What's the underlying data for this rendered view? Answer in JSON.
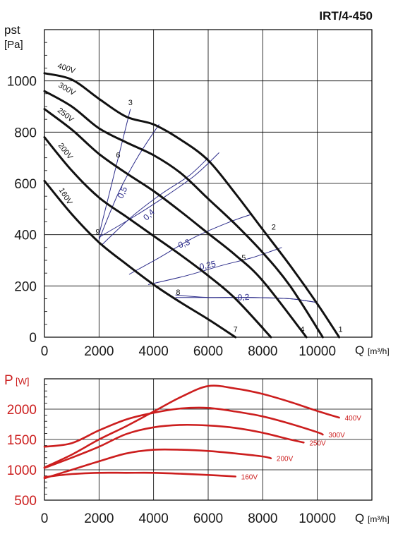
{
  "model": "IRT/4-450",
  "pressure_chart": {
    "ylabel_symbol": "pst",
    "ylabel_unit": "[Pa]",
    "x_label_prefix": "Q",
    "x_label_unit": "[m³/h]",
    "x_ticks": [
      0,
      2000,
      4000,
      6000,
      8000,
      10000
    ],
    "y_ticks": [
      0,
      200,
      400,
      600,
      800,
      1000
    ],
    "xlim": [
      0,
      12000
    ],
    "ylim": [
      0,
      1200
    ],
    "series": [
      {
        "name": "400V",
        "points": [
          [
            0,
            1030
          ],
          [
            1000,
            1005
          ],
          [
            2000,
            930
          ],
          [
            3000,
            860
          ],
          [
            4000,
            830
          ],
          [
            5000,
            770
          ],
          [
            6000,
            690
          ],
          [
            7000,
            560
          ],
          [
            8000,
            420
          ],
          [
            9000,
            280
          ],
          [
            10000,
            130
          ],
          [
            10800,
            0
          ]
        ]
      },
      {
        "name": "300V",
        "points": [
          [
            0,
            960
          ],
          [
            1000,
            900
          ],
          [
            2000,
            815
          ],
          [
            3000,
            760
          ],
          [
            4000,
            710
          ],
          [
            5000,
            640
          ],
          [
            6000,
            540
          ],
          [
            7000,
            440
          ],
          [
            8000,
            330
          ],
          [
            9000,
            200
          ],
          [
            10200,
            0
          ]
        ]
      },
      {
        "name": "250V",
        "points": [
          [
            0,
            890
          ],
          [
            1000,
            810
          ],
          [
            2000,
            715
          ],
          [
            3000,
            640
          ],
          [
            4000,
            570
          ],
          [
            5000,
            490
          ],
          [
            6000,
            405
          ],
          [
            7000,
            320
          ],
          [
            8000,
            220
          ],
          [
            9600,
            0
          ]
        ]
      },
      {
        "name": "200V",
        "points": [
          [
            0,
            780
          ],
          [
            1000,
            650
          ],
          [
            2000,
            545
          ],
          [
            3000,
            470
          ],
          [
            4000,
            395
          ],
          [
            5000,
            320
          ],
          [
            6000,
            240
          ],
          [
            7000,
            150
          ],
          [
            8300,
            0
          ]
        ]
      },
      {
        "name": "160V",
        "points": [
          [
            0,
            610
          ],
          [
            1000,
            480
          ],
          [
            2000,
            370
          ],
          [
            3000,
            285
          ],
          [
            4000,
            205
          ],
          [
            5000,
            135
          ],
          [
            6000,
            70
          ],
          [
            7000,
            0
          ]
        ]
      }
    ],
    "curve_labels": [
      {
        "text": "400V",
        "x": 780,
        "y": 1040,
        "angle": 18
      },
      {
        "text": "300V",
        "x": 780,
        "y": 960,
        "angle": 30
      },
      {
        "text": "250V",
        "x": 720,
        "y": 860,
        "angle": 38
      },
      {
        "text": "200V",
        "x": 700,
        "y": 720,
        "angle": 52
      },
      {
        "text": "160V",
        "x": 700,
        "y": 545,
        "angle": 58
      }
    ],
    "operating_lines": [
      {
        "name": "3-9",
        "points": [
          [
            3150,
            890
          ],
          [
            2000,
            400
          ]
        ],
        "end_labels": [
          {
            "text": "3",
            "x": 3150,
            "y": 900
          },
          {
            "text": "9",
            "x": 1950,
            "y": 400
          }
        ]
      },
      {
        "name": "2-9",
        "points": [
          [
            2000,
            390
          ],
          [
            3200,
            465
          ],
          [
            4300,
            540
          ],
          [
            5500,
            630
          ],
          [
            6400,
            720
          ]
        ],
        "end_labels": []
      },
      {
        "name": "1-8",
        "points": [
          [
            4800,
            165
          ],
          [
            6000,
            155
          ],
          [
            7500,
            155
          ],
          [
            9000,
            150
          ],
          [
            10000,
            135
          ]
        ],
        "end_labels": [
          {
            "text": "1",
            "x": 10900,
            "y": 15
          },
          {
            "text": "8",
            "x": 4900,
            "y": 170
          }
        ]
      }
    ],
    "point_labels": [
      {
        "text": "1",
        "x": 10850,
        "y": 20
      },
      {
        "text": "2",
        "x": 8400,
        "y": 420
      },
      {
        "text": "3",
        "x": 3150,
        "y": 905
      },
      {
        "text": "4",
        "x": 9450,
        "y": 20
      },
      {
        "text": "5",
        "x": 7300,
        "y": 300
      },
      {
        "text": "6",
        "x": 2700,
        "y": 700
      },
      {
        "text": "7",
        "x": 7000,
        "y": 20
      },
      {
        "text": "8",
        "x": 4900,
        "y": 165
      },
      {
        "text": "9",
        "x": 1950,
        "y": 400
      }
    ],
    "efficiency_labels": [
      {
        "text": "0,5",
        "x": 2950,
        "y": 560,
        "angle": -65
      },
      {
        "text": "0,4",
        "x": 3900,
        "y": 470,
        "angle": -45
      },
      {
        "text": "0,3",
        "x": 5150,
        "y": 355,
        "angle": -20
      },
      {
        "text": "0,25",
        "x": 6000,
        "y": 270,
        "angle": -12
      },
      {
        "text": "0,2",
        "x": 7300,
        "y": 145,
        "angle": -3
      }
    ]
  },
  "power_chart": {
    "ylabel_symbol": "P",
    "ylabel_unit": "[W]",
    "x_label_prefix": "Q",
    "x_label_unit": "[m³/h]",
    "x_ticks": [
      0,
      2000,
      4000,
      6000,
      8000,
      10000
    ],
    "y_ticks": [
      500,
      1000,
      1500,
      2000
    ],
    "xlim": [
      0,
      12000
    ],
    "ylim": [
      500,
      2500
    ],
    "color": "#cc1e1e",
    "series": [
      {
        "name": "400V",
        "points": [
          [
            0,
            1040
          ],
          [
            1000,
            1250
          ],
          [
            2000,
            1500
          ],
          [
            3000,
            1720
          ],
          [
            4000,
            1960
          ],
          [
            5000,
            2200
          ],
          [
            6000,
            2380
          ],
          [
            7000,
            2340
          ],
          [
            8000,
            2250
          ],
          [
            9000,
            2120
          ],
          [
            10000,
            1970
          ],
          [
            10800,
            1860
          ]
        ]
      },
      {
        "name": "300V",
        "points": [
          [
            0,
            1380
          ],
          [
            1000,
            1440
          ],
          [
            2000,
            1650
          ],
          [
            3000,
            1830
          ],
          [
            4000,
            1940
          ],
          [
            5000,
            2010
          ],
          [
            6000,
            2020
          ],
          [
            7000,
            1960
          ],
          [
            8000,
            1880
          ],
          [
            9000,
            1760
          ],
          [
            10000,
            1620
          ],
          [
            10200,
            1580
          ]
        ]
      },
      {
        "name": "250V",
        "points": [
          [
            0,
            1030
          ],
          [
            1000,
            1200
          ],
          [
            2000,
            1380
          ],
          [
            3000,
            1590
          ],
          [
            4000,
            1700
          ],
          [
            5000,
            1740
          ],
          [
            6000,
            1730
          ],
          [
            7000,
            1690
          ],
          [
            8000,
            1610
          ],
          [
            9000,
            1500
          ],
          [
            9500,
            1450
          ]
        ]
      },
      {
        "name": "200V",
        "points": [
          [
            0,
            860
          ],
          [
            1000,
            1000
          ],
          [
            2000,
            1140
          ],
          [
            3000,
            1270
          ],
          [
            4000,
            1330
          ],
          [
            5000,
            1330
          ],
          [
            6000,
            1310
          ],
          [
            7000,
            1270
          ],
          [
            8000,
            1220
          ],
          [
            8300,
            1190
          ]
        ]
      },
      {
        "name": "160V",
        "points": [
          [
            0,
            880
          ],
          [
            1000,
            930
          ],
          [
            2000,
            950
          ],
          [
            3000,
            950
          ],
          [
            4000,
            950
          ],
          [
            5000,
            935
          ],
          [
            6000,
            915
          ],
          [
            7000,
            890
          ]
        ]
      }
    ]
  }
}
